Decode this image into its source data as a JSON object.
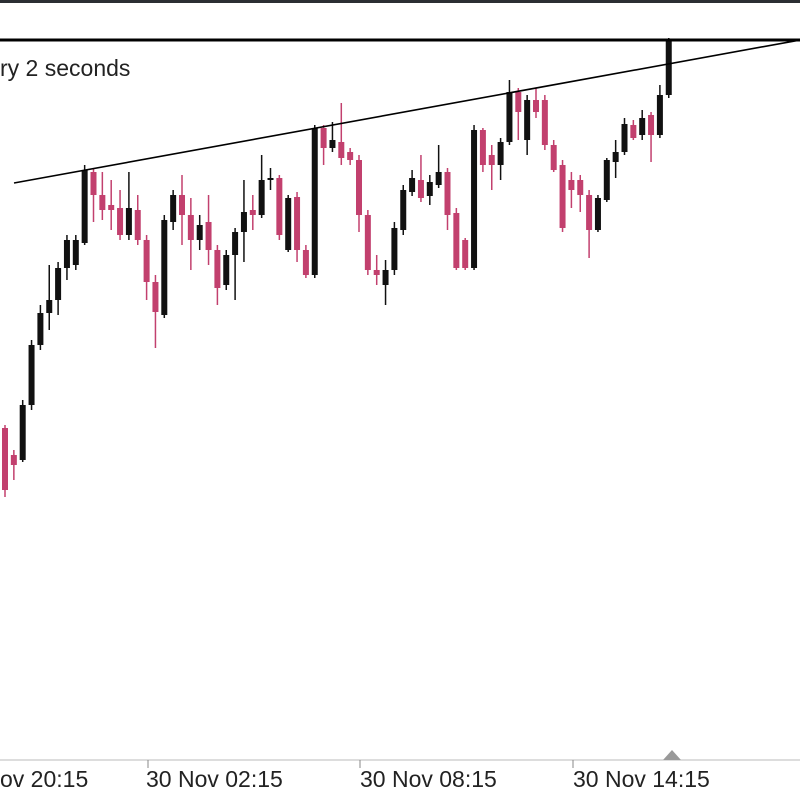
{
  "status_text": "ry 2 seconds",
  "chart_data": {
    "type": "candlestick",
    "ylim": [
      0,
      800
    ],
    "up_color": "#111111",
    "down_color": "#c2406e",
    "x_labels": [
      "ov 20:15",
      "30 Nov 02:15",
      "30 Nov 08:15",
      "30 Nov 14:15"
    ],
    "open": [
      372,
      345,
      340,
      395,
      455,
      487,
      500,
      532,
      535,
      557,
      628,
      605,
      595,
      592,
      565,
      590,
      560,
      518,
      485,
      578,
      605,
      585,
      560,
      578,
      550,
      515,
      545,
      568,
      590,
      585,
      620,
      622,
      550,
      603,
      550,
      525,
      672,
      652,
      658,
      648,
      640,
      585,
      530,
      515,
      530,
      570,
      608,
      620,
      604,
      615,
      628,
      587,
      560,
      532,
      670,
      645,
      635,
      658,
      708,
      660,
      700,
      700,
      655,
      635,
      620,
      620,
      605,
      570,
      600,
      638,
      648,
      675,
      665,
      685,
      665,
      705
    ],
    "high": [
      375,
      350,
      400,
      460,
      495,
      535,
      538,
      565,
      565,
      635,
      632,
      628,
      620,
      610,
      628,
      605,
      565,
      525,
      585,
      610,
      625,
      602,
      585,
      605,
      555,
      550,
      572,
      620,
      605,
      645,
      632,
      625,
      605,
      608,
      555,
      675,
      675,
      678,
      697,
      652,
      645,
      590,
      545,
      540,
      578,
      615,
      630,
      645,
      625,
      655,
      632,
      592,
      562,
      675,
      672,
      655,
      662,
      720,
      712,
      705,
      712,
      705,
      660,
      640,
      628,
      625,
      610,
      605,
      642,
      660,
      682,
      680,
      690,
      688,
      715,
      762
    ],
    "low": [
      303,
      320,
      338,
      390,
      450,
      470,
      485,
      520,
      530,
      555,
      578,
      580,
      570,
      560,
      560,
      555,
      500,
      452,
      482,
      570,
      555,
      530,
      550,
      535,
      495,
      510,
      500,
      538,
      570,
      582,
      610,
      560,
      548,
      538,
      522,
      522,
      635,
      648,
      635,
      635,
      568,
      525,
      515,
      495,
      525,
      565,
      604,
      598,
      595,
      612,
      570,
      530,
      530,
      530,
      628,
      610,
      620,
      655,
      660,
      645,
      682,
      650,
      628,
      568,
      592,
      588,
      542,
      568,
      598,
      622,
      645,
      660,
      660,
      638,
      662,
      702
    ],
    "close": [
      310,
      335,
      395,
      455,
      487,
      500,
      532,
      560,
      560,
      630,
      605,
      590,
      590,
      565,
      592,
      560,
      518,
      488,
      580,
      605,
      585,
      560,
      575,
      550,
      512,
      545,
      568,
      588,
      585,
      620,
      622,
      565,
      602,
      550,
      525,
      672,
      652,
      660,
      642,
      640,
      585,
      530,
      525,
      530,
      572,
      610,
      622,
      602,
      618,
      628,
      585,
      532,
      532,
      670,
      635,
      635,
      658,
      708,
      688,
      700,
      688,
      655,
      630,
      572,
      610,
      605,
      570,
      602,
      640,
      648,
      676,
      662,
      682,
      665,
      705,
      760
    ]
  }
}
